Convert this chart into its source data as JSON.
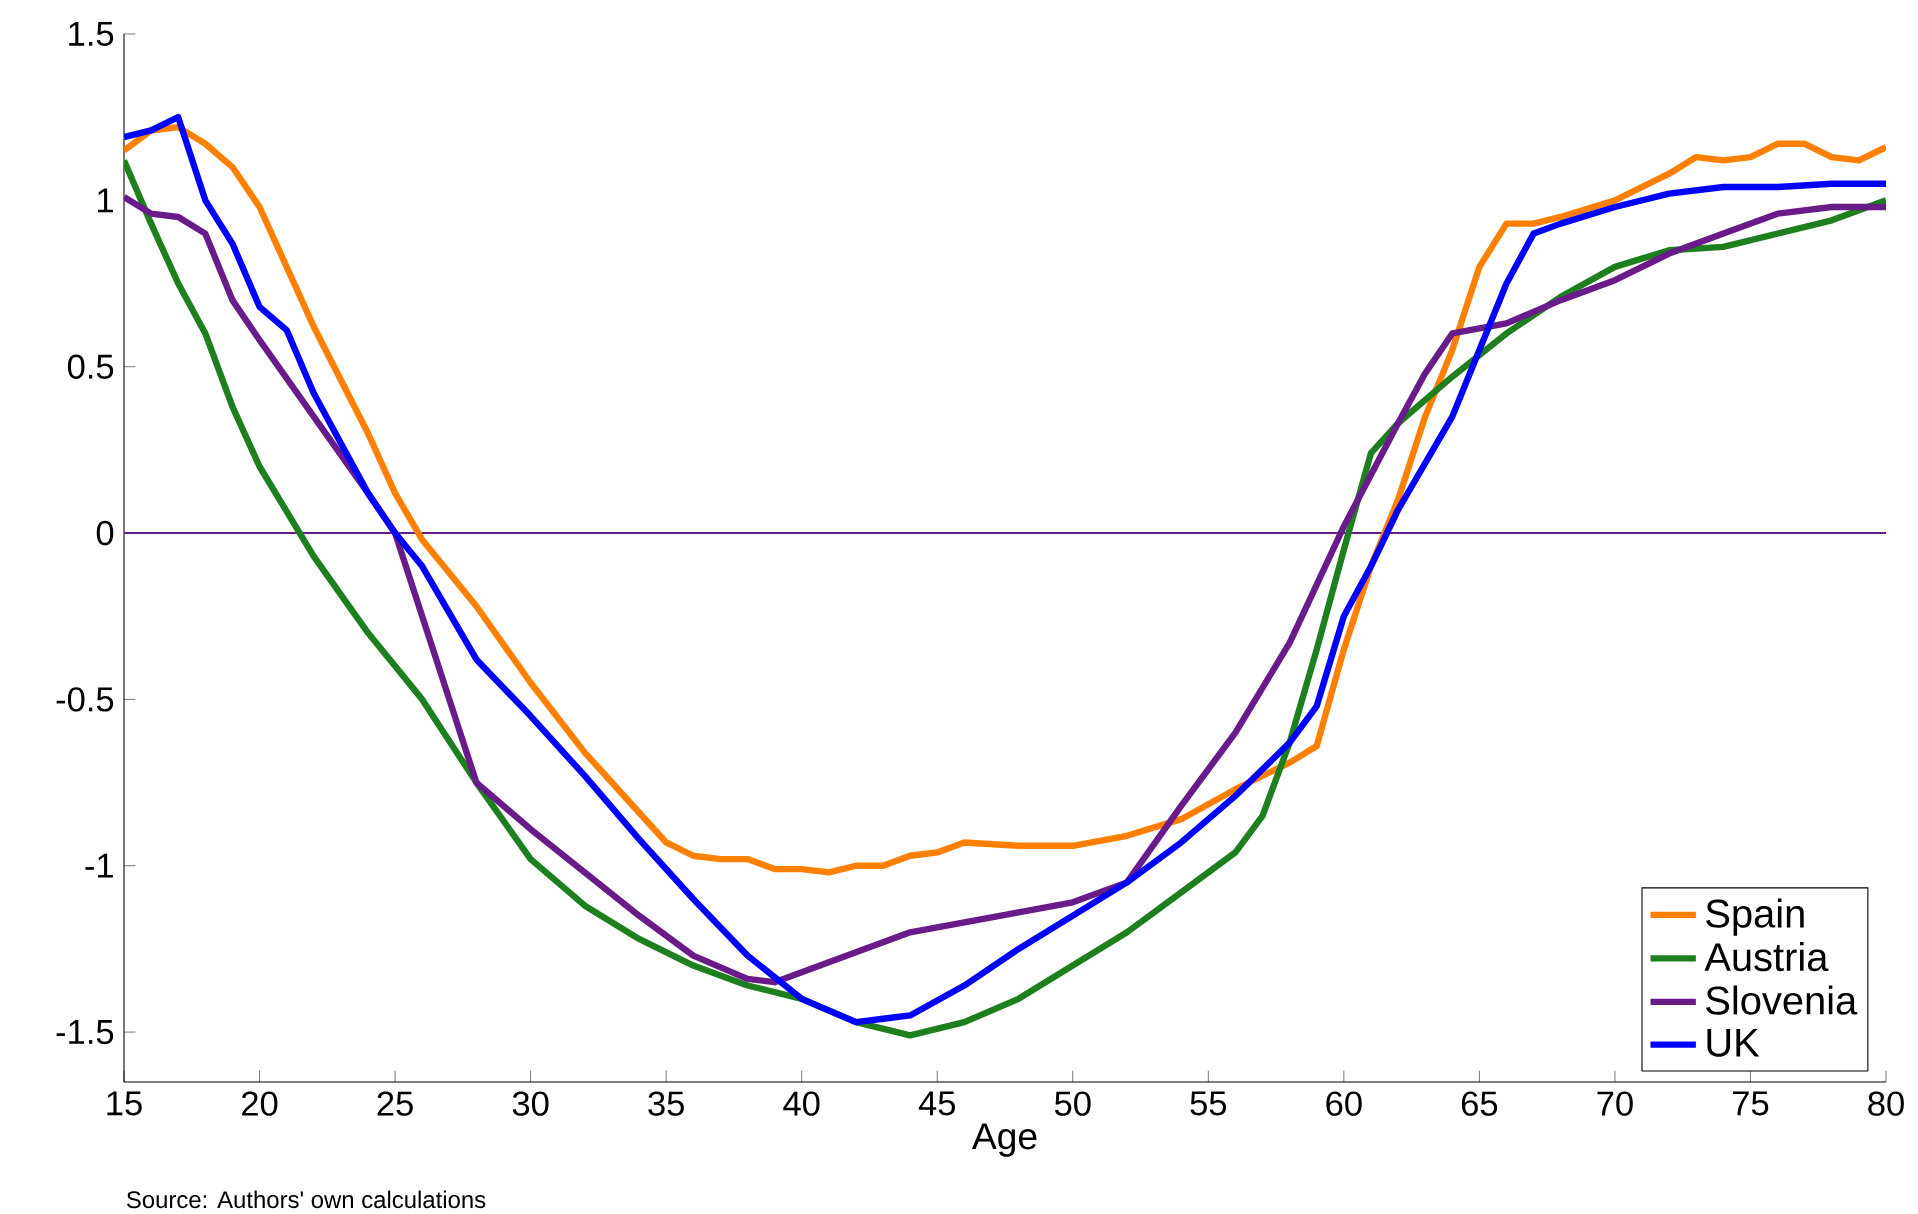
{
  "chart_data": {
    "type": "line",
    "xlabel": "Age",
    "annotations": [
      "Source: Authors' own calculations"
    ],
    "xlim": [
      15,
      80
    ],
    "xticks": [
      15,
      20,
      25,
      30,
      35,
      40,
      45,
      50,
      55,
      60,
      65,
      70,
      75,
      80
    ],
    "ylim": [
      -1.65,
      1.5
    ],
    "yticks": [
      -1.5,
      -1,
      -0.5,
      0,
      0.5,
      1,
      1.5
    ],
    "ref_lines": [
      {
        "axis": "y",
        "value": 0,
        "color": "#6a1b8a"
      }
    ],
    "legend": "bottom right",
    "grid": false,
    "marker": "none",
    "line_style": "solid",
    "series": [
      {
        "name": "Spain",
        "color": "#ff8000",
        "x": [
          15,
          16,
          17,
          18,
          19,
          20,
          22,
          24,
          25,
          26,
          28,
          30,
          32,
          34,
          35,
          36,
          37,
          38,
          39,
          40,
          41,
          42,
          43,
          44,
          45,
          46,
          48,
          50,
          52,
          54,
          56,
          58,
          59,
          60,
          61,
          62,
          63,
          64,
          65,
          66,
          67,
          68,
          70,
          72,
          73,
          74,
          75,
          76,
          77,
          78,
          79,
          80
        ],
        "values": [
          1.15,
          1.21,
          1.22,
          1.17,
          1.1,
          0.98,
          0.62,
          0.3,
          0.12,
          -0.02,
          -0.22,
          -0.45,
          -0.66,
          -0.84,
          -0.93,
          -0.97,
          -0.98,
          -0.98,
          -1.01,
          -1.01,
          -1.02,
          -1.0,
          -1.0,
          -0.97,
          -0.96,
          -0.93,
          -0.94,
          -0.94,
          -0.91,
          -0.86,
          -0.77,
          -0.69,
          -0.64,
          -0.35,
          -0.1,
          0.1,
          0.35,
          0.55,
          0.8,
          0.93,
          0.93,
          0.95,
          1.0,
          1.08,
          1.13,
          1.12,
          1.13,
          1.17,
          1.17,
          1.13,
          1.12,
          1.16
        ]
      },
      {
        "name": "Austria",
        "color": "#1e7f1e",
        "x": [
          15,
          16,
          17,
          18,
          19,
          20,
          22,
          24,
          26,
          28,
          30,
          32,
          34,
          36,
          38,
          40,
          42,
          44,
          46,
          48,
          50,
          52,
          54,
          56,
          57,
          58,
          59,
          60,
          61,
          62,
          64,
          66,
          68,
          70,
          72,
          74,
          76,
          78,
          80
        ],
        "values": [
          1.12,
          0.93,
          0.75,
          0.6,
          0.38,
          0.2,
          -0.07,
          -0.3,
          -0.5,
          -0.75,
          -0.98,
          -1.12,
          -1.22,
          -1.3,
          -1.36,
          -1.4,
          -1.47,
          -1.51,
          -1.47,
          -1.4,
          -1.3,
          -1.2,
          -1.08,
          -0.96,
          -0.85,
          -0.63,
          -0.35,
          -0.05,
          0.24,
          0.33,
          0.47,
          0.6,
          0.71,
          0.8,
          0.85,
          0.86,
          0.9,
          0.94,
          1.0
        ]
      },
      {
        "name": "Slovenia",
        "color": "#6a1b8a",
        "x": [
          15,
          16,
          17,
          18,
          19,
          20,
          22,
          24,
          25,
          26,
          27,
          28,
          30,
          32,
          34,
          36,
          38,
          39,
          40,
          42,
          44,
          46,
          48,
          50,
          52,
          54,
          56,
          58,
          60,
          62,
          63,
          64,
          66,
          68,
          70,
          72,
          74,
          76,
          78,
          80
        ],
        "values": [
          1.01,
          0.96,
          0.95,
          0.9,
          0.7,
          0.58,
          0.35,
          0.12,
          0.0,
          -0.25,
          -0.5,
          -0.75,
          -0.89,
          -1.02,
          -1.15,
          -1.27,
          -1.34,
          -1.35,
          -1.32,
          -1.26,
          -1.2,
          -1.17,
          -1.14,
          -1.11,
          -1.05,
          -0.82,
          -0.6,
          -0.33,
          0.02,
          0.33,
          0.48,
          0.6,
          0.63,
          0.7,
          0.76,
          0.84,
          0.9,
          0.96,
          0.98,
          0.98
        ]
      },
      {
        "name": "UK",
        "color": "#0000ff",
        "x": [
          15,
          16,
          17,
          18,
          19,
          20,
          21,
          22,
          23,
          24,
          25,
          26,
          27,
          28,
          30,
          32,
          34,
          36,
          38,
          40,
          42,
          43,
          44,
          46,
          48,
          50,
          52,
          54,
          56,
          58,
          59,
          60,
          61,
          62,
          64,
          65,
          66,
          67,
          68,
          70,
          72,
          74,
          76,
          78,
          80
        ],
        "values": [
          1.19,
          1.21,
          1.25,
          1.0,
          0.87,
          0.68,
          0.61,
          0.42,
          0.27,
          0.12,
          0.0,
          -0.1,
          -0.24,
          -0.38,
          -0.55,
          -0.73,
          -0.92,
          -1.1,
          -1.27,
          -1.4,
          -1.47,
          -1.46,
          -1.45,
          -1.36,
          -1.25,
          -1.15,
          -1.05,
          -0.93,
          -0.79,
          -0.63,
          -0.52,
          -0.25,
          -0.1,
          0.07,
          0.35,
          0.55,
          0.75,
          0.9,
          0.93,
          0.98,
          1.02,
          1.04,
          1.04,
          1.05,
          1.05
        ]
      }
    ]
  }
}
